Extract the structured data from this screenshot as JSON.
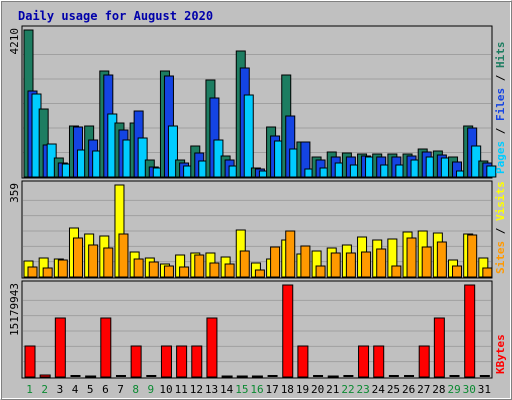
{
  "chart_data": {
    "type": "bar",
    "title": "Daily usage for August 2020",
    "categories": [
      "1",
      "2",
      "3",
      "4",
      "5",
      "6",
      "7",
      "8",
      "9",
      "10",
      "11",
      "12",
      "13",
      "14",
      "15",
      "16",
      "17",
      "18",
      "19",
      "20",
      "21",
      "22",
      "23",
      "24",
      "25",
      "26",
      "27",
      "28",
      "29",
      "30",
      "31"
    ],
    "weekend_days": [
      "1",
      "2",
      "8",
      "9",
      "15",
      "16",
      "22",
      "23",
      "29",
      "30"
    ],
    "panels": [
      {
        "id": "hits-files-pages",
        "max_label": "4210",
        "ylim": [
          0,
          4210
        ],
        "legend": [
          "Pages",
          "Files",
          "Hits"
        ],
        "series": [
          {
            "name": "Hits",
            "color": "#1d7d61",
            "values": [
              4210,
              1950,
              540,
              1460,
              1460,
              3050,
              1560,
              1560,
              480,
              3050,
              480,
              900,
              2780,
              600,
              3610,
              250,
              1440,
              2930,
              1010,
              580,
              710,
              700,
              660,
              660,
              660,
              660,
              790,
              750,
              560,
              1460,
              450
            ]
          },
          {
            "name": "Files",
            "color": "#1444e3",
            "values": [
              2460,
              920,
              410,
              1440,
              1070,
              2910,
              1340,
              1900,
              300,
              2890,
              400,
              680,
              2250,
              480,
              3130,
              230,
              1160,
              1750,
              1010,
              480,
              570,
              580,
              600,
              570,
              580,
              600,
              720,
              640,
              440,
              1400,
              400
            ]
          },
          {
            "name": "Pages",
            "color": "#00ccff",
            "values": [
              2380,
              950,
              380,
              780,
              740,
              1790,
              1070,
              1130,
              250,
              1460,
              320,
              470,
              1070,
              320,
              2350,
              180,
              1030,
              810,
              220,
              270,
              400,
              350,
              560,
              340,
              330,
              500,
              570,
              540,
              160,
              880,
              310
            ]
          }
        ]
      },
      {
        "id": "visits-sites",
        "max_label": "359",
        "ylim": [
          0,
          359
        ],
        "legend": [
          "Sites",
          "Visits"
        ],
        "series": [
          {
            "name": "Visits",
            "color": "#ffff00",
            "values": [
              64,
              74,
              70,
              190,
              166,
              161,
              359,
              97,
              73,
              52,
              86,
              95,
              93,
              78,
              185,
              54,
              69,
              145,
              90,
              103,
              113,
              124,
              156,
              144,
              150,
              177,
              180,
              173,
              68,
              167,
              73
            ]
          },
          {
            "name": "Sites",
            "color": "#ff9900",
            "values": [
              38,
              37,
              66,
              151,
              124,
              115,
              168,
              72,
              58,
              41,
              38,
              85,
              55,
              49,
              101,
              29,
              119,
              181,
              122,
              42,
              93,
              95,
              99,
              109,
              42,
              151,
              119,
              136,
              42,
              162,
              36
            ]
          }
        ]
      },
      {
        "id": "kbytes",
        "max_label": "15179943",
        "ylim": [
          0,
          15179943
        ],
        "legend": [
          "KBytes"
        ],
        "series": [
          {
            "name": "KBytes",
            "color": "#ff0000",
            "values": [
              5115000,
              335000,
              9779000,
              0,
              205000,
              9779000,
              0,
              5115000,
              0,
              5115000,
              5115000,
              5115000,
              9779000,
              205000,
              205000,
              205000,
              0,
              15179943,
              5115000,
              0,
              205000,
              0,
              5115000,
              5115000,
              0,
              0,
              5115000,
              9779000,
              0,
              15179943,
              0
            ]
          }
        ]
      }
    ],
    "colors": {
      "weekday_label": "#000000",
      "weekend_label": "#0b8a32"
    }
  }
}
